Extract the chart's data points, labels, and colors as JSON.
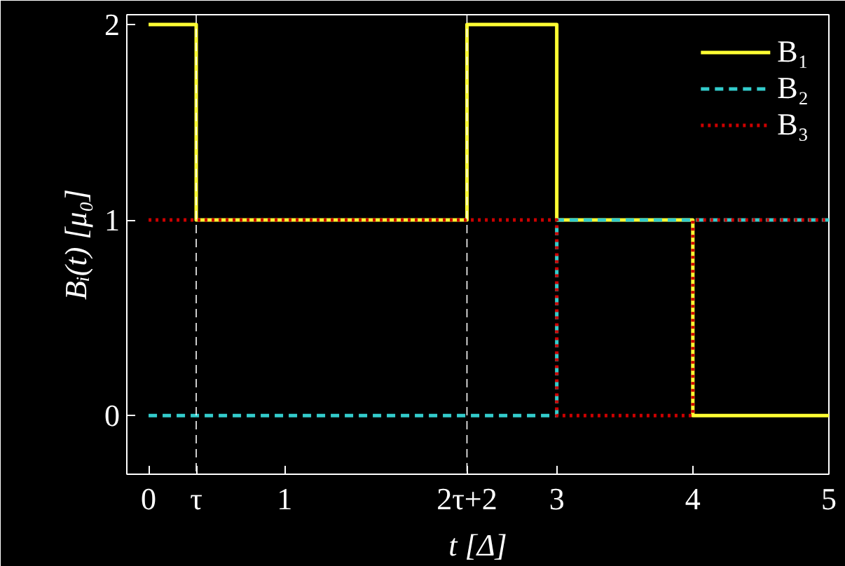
{
  "chart_data": {
    "type": "step",
    "xlabel": "t [Δ]",
    "ylabel": "Bᵢ(t) [μ₀]",
    "xlim": [
      -0.16,
      5
    ],
    "ylim": [
      -0.3,
      2.05
    ],
    "xticks": [
      0,
      {
        "value": 0.35,
        "label": "τ"
      },
      1,
      {
        "value": 2.34,
        "label": "2τ+2"
      },
      3,
      4,
      5
    ],
    "yticks": [
      0,
      1,
      2
    ],
    "grid": false,
    "legend": "top right",
    "series": [
      {
        "name": "B₁",
        "color": "#ffff33",
        "line_style": "solid",
        "x": [
          0,
          0.35,
          2.34,
          3,
          4,
          5
        ],
        "values": [
          2,
          1,
          2,
          1,
          0,
          0
        ]
      },
      {
        "name": "B₂",
        "color": "#33cccc",
        "line_style": "dashed",
        "x": [
          0,
          3,
          5
        ],
        "values": [
          0,
          1,
          1
        ]
      },
      {
        "name": "B₃",
        "color": "#cc0000",
        "line_style": "dotted",
        "x": [
          0,
          3,
          4,
          5
        ],
        "values": [
          1,
          0,
          1,
          1
        ]
      }
    ],
    "ref_lines": [
      {
        "axis": "x",
        "value": 0.35,
        "label": null,
        "color": "#ffffff",
        "line_style": "dashed"
      },
      {
        "axis": "x",
        "value": 2.34,
        "label": null,
        "color": "#ffffff",
        "line_style": "dashed"
      }
    ]
  }
}
